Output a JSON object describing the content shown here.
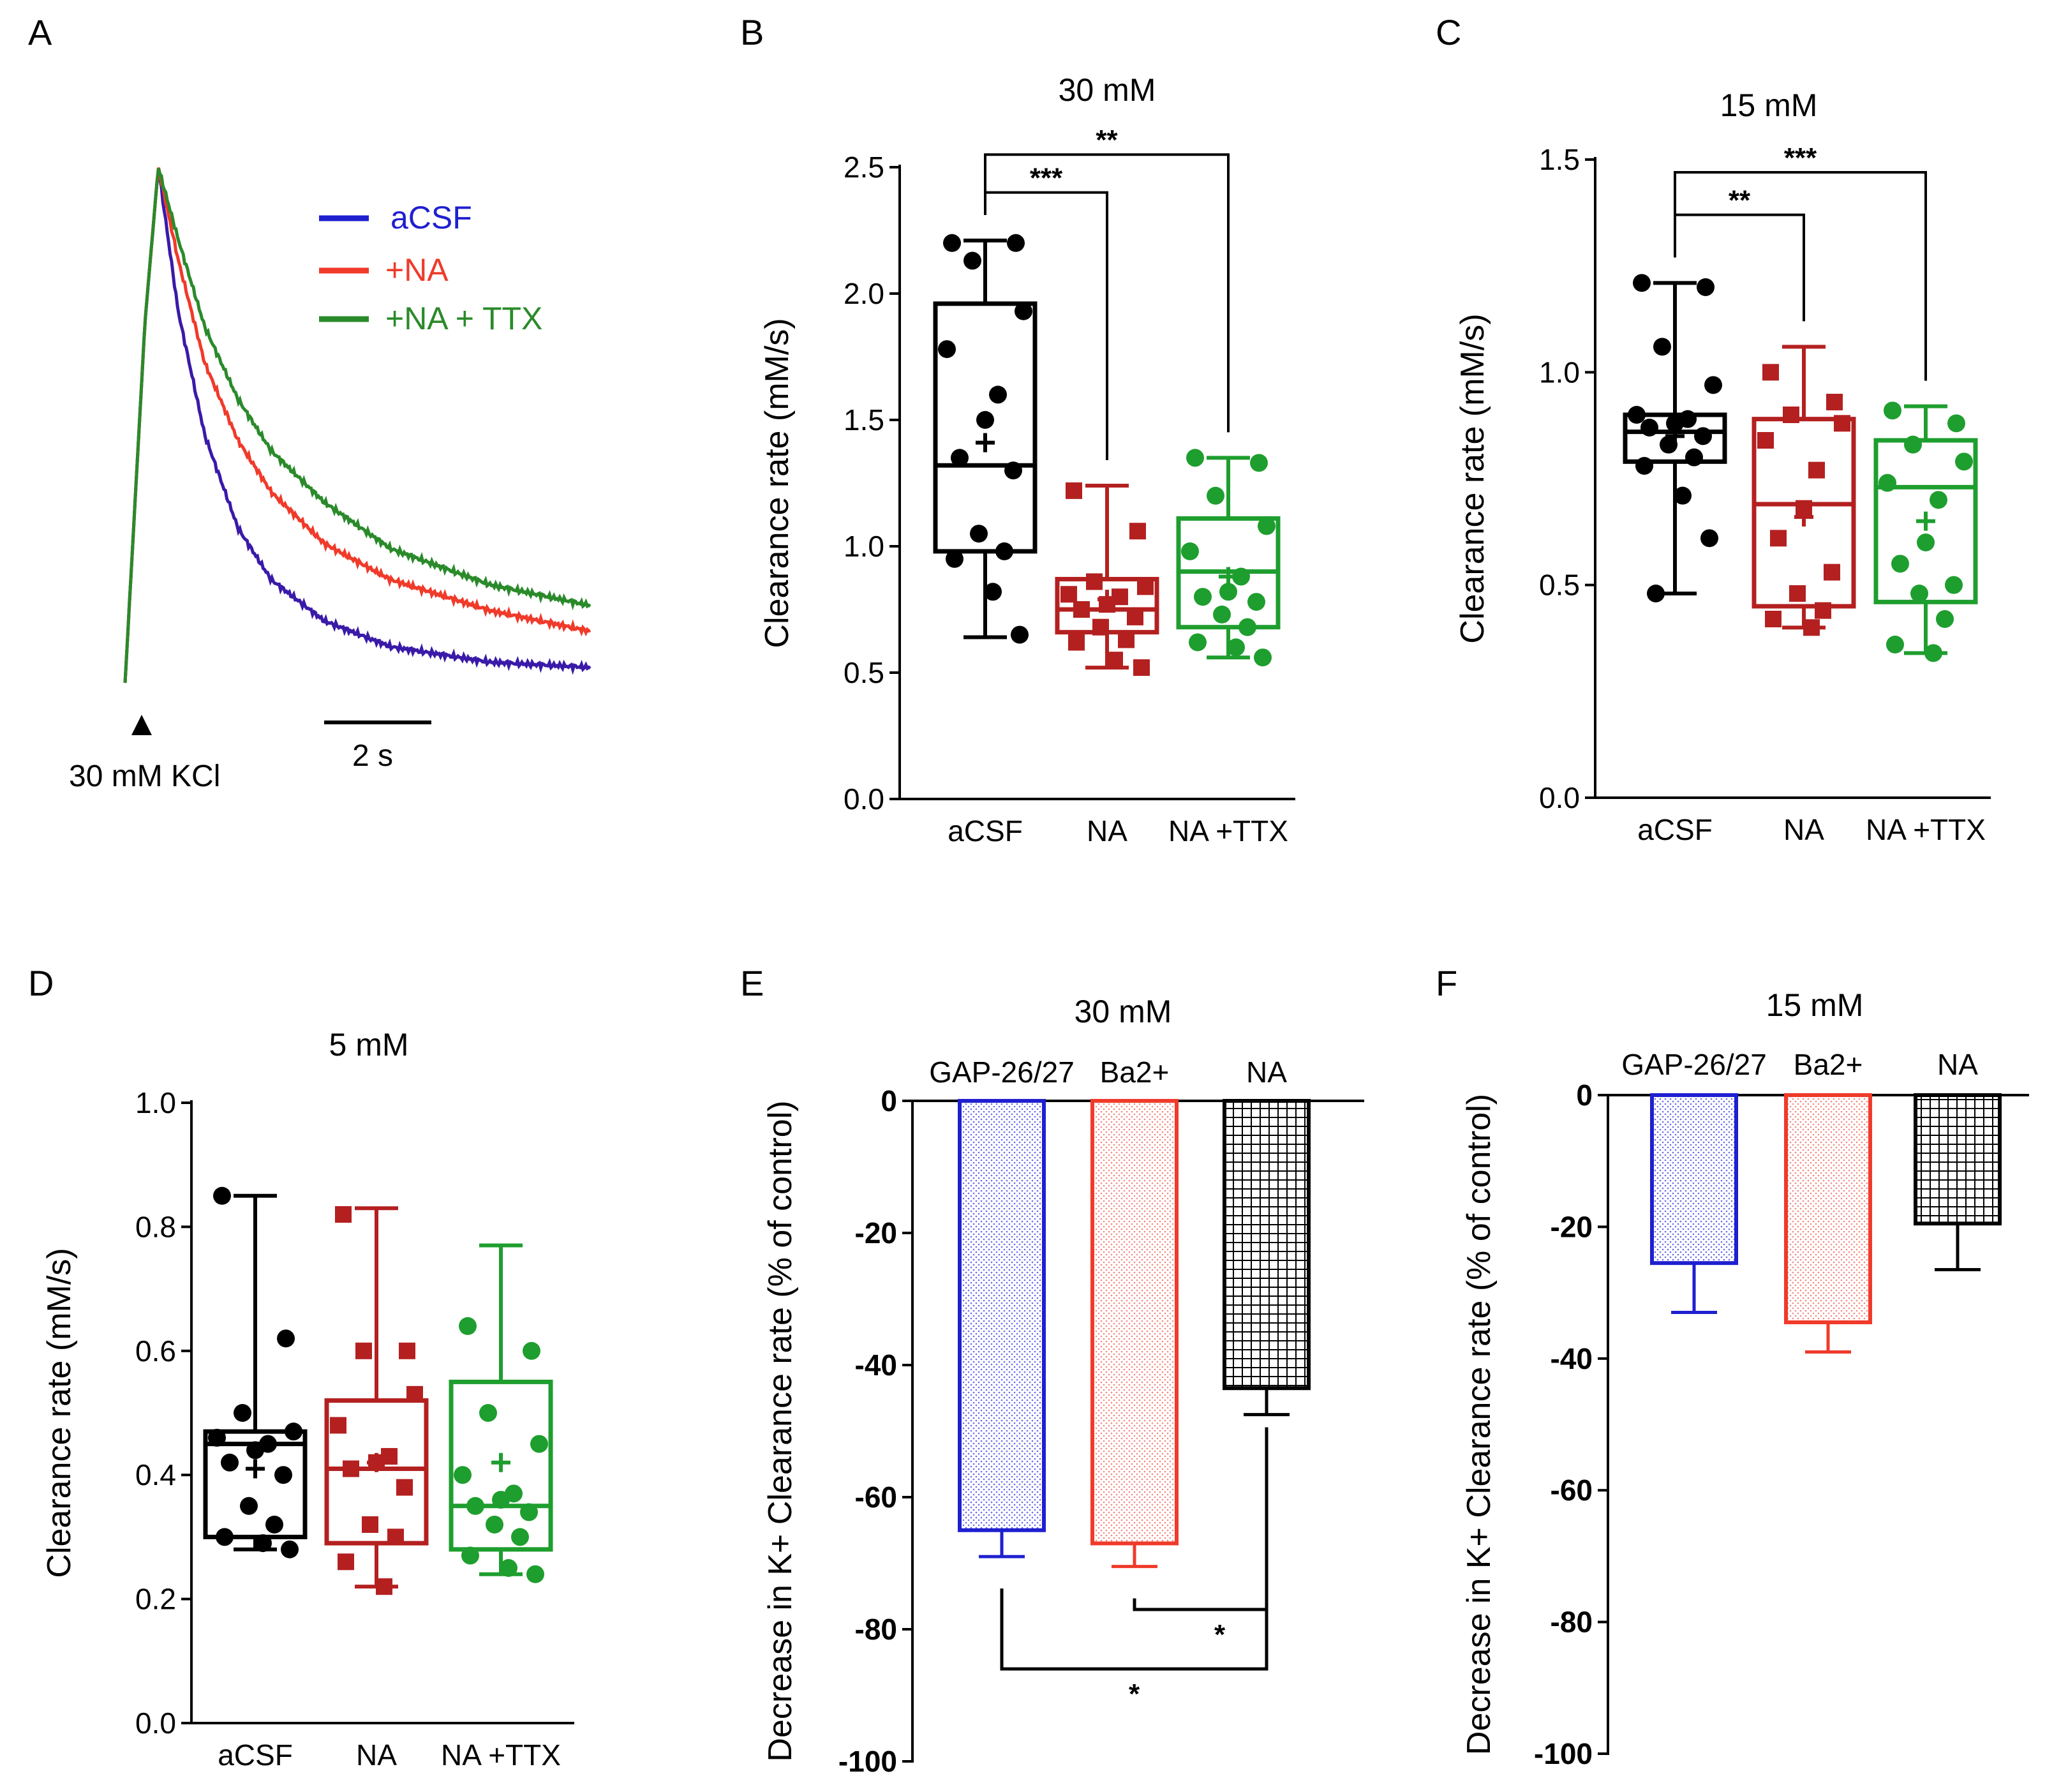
{
  "colors": {
    "acsf": "#1f1fd0",
    "na": "#f03a2a",
    "nattx": "#2a8a2a",
    "box_black": "#000000",
    "box_red": "#b42020",
    "box_green": "#1e9e2e",
    "acsf_trace": "#3a1aa8"
  },
  "chart_data": [
    {
      "id": "A",
      "type": "line",
      "panel": "A",
      "series": [
        {
          "name": "aCSF",
          "color_key": "acsf_trace",
          "x": [
            0,
            0.3,
            0.5,
            0.8,
            1.2,
            1.7,
            2.2,
            3,
            4,
            5.5,
            7
          ],
          "y": [
            0,
            0.7,
            1.0,
            0.72,
            0.48,
            0.3,
            0.2,
            0.12,
            0.07,
            0.04,
            0.03
          ]
        },
        {
          "name": "+NA",
          "color_key": "na",
          "x": [
            0,
            0.3,
            0.5,
            0.8,
            1.2,
            1.7,
            2.2,
            3,
            4,
            5.5,
            7
          ],
          "y": [
            0,
            0.7,
            1.0,
            0.82,
            0.62,
            0.47,
            0.37,
            0.27,
            0.2,
            0.14,
            0.1
          ]
        },
        {
          "name": "+NA + TTX",
          "color_key": "nattx",
          "x": [
            0,
            0.3,
            0.5,
            0.8,
            1.2,
            1.7,
            2.2,
            3,
            4,
            5.5,
            7
          ],
          "y": [
            0,
            0.7,
            1.0,
            0.86,
            0.69,
            0.55,
            0.45,
            0.35,
            0.26,
            0.19,
            0.15
          ]
        }
      ],
      "legend": [
        "aCSF",
        "+NA",
        "+NA + TTX"
      ],
      "stimulus_label": "30 mM KCl",
      "scalebar_label": "2 s"
    },
    {
      "id": "B",
      "type": "box",
      "panel": "B",
      "title": "30 mM",
      "ylabel": "Clearance rate (mM/s)",
      "ylim": [
        0,
        2.5
      ],
      "yticks": [
        "0.0",
        "0.5",
        "1.0",
        "1.5",
        "2.0",
        "2.5"
      ],
      "categories": [
        "aCSF",
        "NA",
        "NA +TTX"
      ],
      "boxes": [
        {
          "name": "aCSF",
          "color_key": "box_black",
          "marker": "circle",
          "min": 0.64,
          "q1": 0.98,
          "median": 1.32,
          "q3": 1.96,
          "max": 2.21,
          "mean": 1.41,
          "points": [
            2.2,
            2.2,
            2.13,
            1.93,
            1.78,
            1.6,
            1.5,
            1.35,
            1.3,
            1.05,
            0.98,
            0.95,
            0.82,
            0.65
          ]
        },
        {
          "name": "NA",
          "color_key": "box_red",
          "marker": "square",
          "min": 0.52,
          "q1": 0.66,
          "median": 0.75,
          "q3": 0.87,
          "max": 1.24,
          "mean": 0.79,
          "points": [
            1.22,
            1.06,
            0.86,
            0.84,
            0.81,
            0.8,
            0.77,
            0.75,
            0.72,
            0.68,
            0.63,
            0.62,
            0.55,
            0.52
          ]
        },
        {
          "name": "NA +TTX",
          "color_key": "box_green",
          "marker": "circle",
          "min": 0.56,
          "q1": 0.68,
          "median": 0.9,
          "q3": 1.11,
          "max": 1.35,
          "mean": 0.88,
          "points": [
            1.35,
            1.33,
            1.2,
            1.08,
            0.98,
            0.88,
            0.82,
            0.8,
            0.78,
            0.73,
            0.68,
            0.62,
            0.6,
            0.56
          ]
        }
      ],
      "brackets": [
        {
          "from": 0,
          "to": 1,
          "label": "***",
          "y": 2.4
        },
        {
          "from": 0,
          "to": 2,
          "label": "**",
          "y": 2.55
        }
      ]
    },
    {
      "id": "C",
      "type": "box",
      "panel": "C",
      "title": "15 mM",
      "ylabel": "Clearance rate (mM/s)",
      "ylim": [
        0,
        1.5
      ],
      "yticks": [
        "0.0",
        "0.5",
        "1.0",
        "1.5"
      ],
      "categories": [
        "aCSF",
        "NA",
        "NA +TTX"
      ],
      "boxes": [
        {
          "name": "aCSF",
          "color_key": "box_black",
          "marker": "circle",
          "min": 0.48,
          "q1": 0.79,
          "median": 0.86,
          "q3": 0.9,
          "max": 1.21,
          "mean": 0.85,
          "points": [
            1.21,
            1.2,
            1.06,
            0.97,
            0.9,
            0.89,
            0.88,
            0.87,
            0.85,
            0.83,
            0.8,
            0.78,
            0.71,
            0.61,
            0.48
          ]
        },
        {
          "name": "NA",
          "color_key": "box_red",
          "marker": "square",
          "min": 0.4,
          "q1": 0.45,
          "median": 0.69,
          "q3": 0.89,
          "max": 1.06,
          "mean": 0.66,
          "points": [
            1.0,
            0.93,
            0.9,
            0.88,
            0.84,
            0.77,
            0.68,
            0.61,
            0.53,
            0.48,
            0.44,
            0.42,
            0.4
          ]
        },
        {
          "name": "NA +TTX",
          "color_key": "box_green",
          "marker": "circle",
          "min": 0.34,
          "q1": 0.46,
          "median": 0.73,
          "q3": 0.84,
          "max": 0.92,
          "mean": 0.65,
          "points": [
            0.91,
            0.88,
            0.83,
            0.79,
            0.74,
            0.7,
            0.6,
            0.55,
            0.5,
            0.48,
            0.42,
            0.36,
            0.34
          ]
        }
      ],
      "brackets": [
        {
          "from": 0,
          "to": 1,
          "label": "**",
          "y": 1.37
        },
        {
          "from": 0,
          "to": 2,
          "label": "***",
          "y": 1.47
        }
      ]
    },
    {
      "id": "D",
      "type": "box",
      "panel": "D",
      "title": "5 mM",
      "ylabel": "Clearance rate (mM/s)",
      "ylim": [
        0,
        1.0
      ],
      "yticks": [
        "0.0",
        "0.2",
        "0.4",
        "0.6",
        "0.8",
        "1.0"
      ],
      "categories": [
        "aCSF",
        "NA",
        "NA +TTX"
      ],
      "boxes": [
        {
          "name": "aCSF",
          "color_key": "box_black",
          "marker": "circle",
          "min": 0.28,
          "q1": 0.3,
          "median": 0.45,
          "q3": 0.47,
          "max": 0.85,
          "mean": 0.41,
          "points": [
            0.85,
            0.62,
            0.5,
            0.47,
            0.46,
            0.45,
            0.44,
            0.42,
            0.4,
            0.35,
            0.32,
            0.3,
            0.29,
            0.28
          ]
        },
        {
          "name": "NA",
          "color_key": "box_red",
          "marker": "square",
          "min": 0.22,
          "q1": 0.29,
          "median": 0.41,
          "q3": 0.52,
          "max": 0.83,
          "mean": 0.42,
          "points": [
            0.82,
            0.6,
            0.6,
            0.53,
            0.48,
            0.43,
            0.42,
            0.41,
            0.38,
            0.32,
            0.3,
            0.26,
            0.22
          ]
        },
        {
          "name": "NA +TTX",
          "color_key": "box_green",
          "marker": "circle",
          "min": 0.24,
          "q1": 0.28,
          "median": 0.35,
          "q3": 0.55,
          "max": 0.77,
          "mean": 0.42,
          "points": [
            0.64,
            0.6,
            0.5,
            0.45,
            0.4,
            0.37,
            0.36,
            0.35,
            0.34,
            0.32,
            0.3,
            0.27,
            0.25,
            0.24
          ]
        }
      ]
    },
    {
      "id": "E",
      "type": "bar",
      "panel": "E",
      "title": "30 mM",
      "ylabel": "Decrease in K+ Clearance rate (% of control)",
      "ylim": [
        -100,
        0
      ],
      "yticks": [
        "0",
        "-20",
        "-40",
        "-60",
        "-80",
        "-100"
      ],
      "categories": [
        "GAP-26/27",
        "Ba2+",
        "NA"
      ],
      "values": [
        -65,
        -67,
        -43.5
      ],
      "errors": [
        4,
        3.5,
        4
      ],
      "brackets": [
        {
          "from": 1,
          "to": 2,
          "label": "*",
          "y": -77
        },
        {
          "from": 0,
          "to": 2,
          "label": "*",
          "y": -86
        }
      ]
    },
    {
      "id": "F",
      "type": "bar",
      "panel": "F",
      "title": "15 mM",
      "ylabel": "Decrease in K+ Clearance rate (% of control)",
      "ylim": [
        -100,
        0
      ],
      "yticks": [
        "0",
        "-20",
        "-40",
        "-60",
        "-80",
        "-100"
      ],
      "categories": [
        "GAP-26/27",
        "Ba2+",
        "NA"
      ],
      "values": [
        -25.5,
        -34.5,
        -19.5
      ],
      "errors": [
        7.5,
        4.5,
        7
      ]
    }
  ]
}
